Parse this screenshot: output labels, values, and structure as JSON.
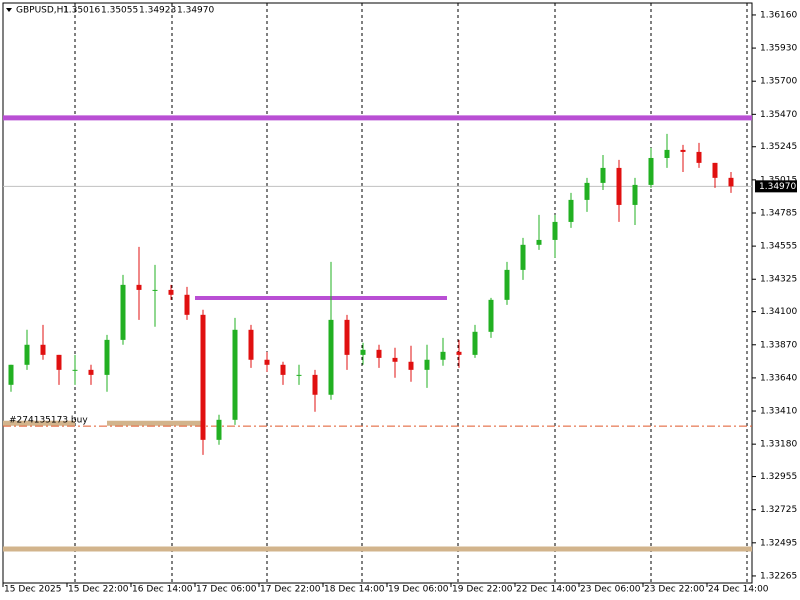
{
  "chart_data": {
    "type": "candlestick",
    "header": {
      "symbol": "GBPUSD,H1",
      "open": "1.35016",
      "high": "1.35055",
      "low": "1.34923",
      "close": "1.34970"
    },
    "categories": [
      "15 Dec 2025",
      null,
      null,
      null,
      "15 Dec 22:00",
      null,
      null,
      null,
      "16 Dec 14:00",
      null,
      null,
      null,
      "17 Dec 06:00",
      null,
      null,
      null,
      "17 Dec 22:00",
      null,
      null,
      null,
      "18 Dec 14:00",
      null,
      null,
      null,
      "19 Dec 06:00",
      null,
      null,
      null,
      "19 Dec 22:00",
      null,
      null,
      null,
      "22 Dec 14:00",
      null,
      null,
      null,
      "23 Dec 06:00",
      null,
      null,
      null,
      "23 Dec 22:00",
      null,
      null,
      null,
      "24 Dec 14:00",
      null
    ],
    "open": [
      1.33592,
      1.33731,
      1.3387,
      1.338,
      1.33696,
      1.33696,
      1.33661,
      1.33904,
      1.34286,
      1.34251,
      1.34251,
      1.34217,
      1.34078,
      1.3321,
      1.33349,
      1.33974,
      1.33766,
      1.33731,
      1.33661,
      1.33661,
      1.33523,
      1.34043,
      1.338,
      1.33835,
      1.33779,
      1.33752,
      1.33696,
      1.33766,
      1.33821,
      1.338,
      1.3396,
      1.34182,
      1.3439,
      1.34564,
      1.34598,
      1.34723,
      1.34876,
      1.34994,
      1.35098,
      1.34841,
      1.3498,
      1.35167,
      1.35223,
      1.35209,
      1.35133,
      1.35029
    ],
    "high": [
      1.33731,
      1.33974,
      1.34008,
      1.338,
      1.338,
      1.33731,
      1.33939,
      1.34355,
      1.3455,
      1.34425,
      1.34286,
      1.34272,
      1.34113,
      1.33384,
      1.34057,
      1.34008,
      1.33821,
      1.33752,
      1.33731,
      1.33696,
      1.34446,
      1.34078,
      1.33884,
      1.3387,
      1.33849,
      1.33863,
      1.3387,
      1.33918,
      1.33904,
      1.34008,
      1.34196,
      1.34446,
      1.34612,
      1.34772,
      1.34772,
      1.34925,
      1.35029,
      1.35188,
      1.35154,
      1.35029,
      1.35237,
      1.35334,
      1.35258,
      1.35272,
      1.35133,
      1.3507
    ],
    "low": [
      1.33544,
      1.33696,
      1.33766,
      1.33592,
      1.33592,
      1.33592,
      1.33544,
      1.3387,
      1.34043,
      1.33995,
      1.34182,
      1.34043,
      1.33106,
      1.33176,
      1.33314,
      1.3371,
      1.33682,
      1.33592,
      1.33592,
      1.33405,
      1.33488,
      1.33696,
      1.33731,
      1.3371,
      1.33641,
      1.33613,
      1.33571,
      1.33724,
      1.3371,
      1.33779,
      1.33918,
      1.34147,
      1.34321,
      1.34529,
      1.34473,
      1.34682,
      1.34793,
      1.34945,
      1.34723,
      1.34702,
      1.34959,
      1.35098,
      1.3507,
      1.35098,
      1.34959,
      1.34925
    ],
    "close": [
      1.33731,
      1.3387,
      1.338,
      1.33696,
      1.33696,
      1.33661,
      1.33904,
      1.34286,
      1.34251,
      1.34251,
      1.34217,
      1.34078,
      1.3321,
      1.33349,
      1.33974,
      1.33766,
      1.33731,
      1.33661,
      1.33661,
      1.33523,
      1.34043,
      1.338,
      1.33835,
      1.33779,
      1.33752,
      1.33696,
      1.33766,
      1.33821,
      1.338,
      1.3396,
      1.34182,
      1.3439,
      1.34564,
      1.34598,
      1.34723,
      1.34876,
      1.34994,
      1.35098,
      1.34841,
      1.3498,
      1.35167,
      1.35223,
      1.35209,
      1.35133,
      1.35029,
      1.3497
    ],
    "up_color": "#22b022",
    "down_color": "#e01010",
    "ylim": [
      1.32216,
      1.36243
    ],
    "yticks": [
      {
        "value": 1.3616,
        "label": "1.36160"
      },
      {
        "value": 1.3593,
        "label": "1.35930"
      },
      {
        "value": 1.357,
        "label": "1.35700"
      },
      {
        "value": 1.3547,
        "label": "1.35470"
      },
      1.35245,
      1.35015,
      1.34785,
      1.34555,
      1.34325,
      {
        "value": 1.341,
        "label": "1.34100"
      },
      {
        "value": 1.3387,
        "label": "1.33870"
      },
      {
        "value": 1.3364,
        "label": "1.33640"
      },
      {
        "value": 1.3341,
        "label": "1.33410"
      },
      {
        "value": 1.3318,
        "label": "1.33180"
      },
      1.32955,
      1.32725,
      1.32495,
      1.32265
    ],
    "current_price": {
      "value": 1.3497,
      "label": "1.34970"
    },
    "hlines": [
      {
        "value": 1.35445,
        "color": "#b94fd4"
      },
      {
        "value": 1.32452,
        "color": "#d2b48c"
      }
    ],
    "segments": [
      {
        "value": 1.34195,
        "color": "#b94fd4"
      },
      {
        "value": 1.33325,
        "color": "#d2b48c"
      },
      {
        "value": 1.33325,
        "color": "#d2b48c"
      }
    ],
    "order": {
      "label": "#274135173 buy",
      "value": 1.33305,
      "color": "#e0582a"
    }
  }
}
